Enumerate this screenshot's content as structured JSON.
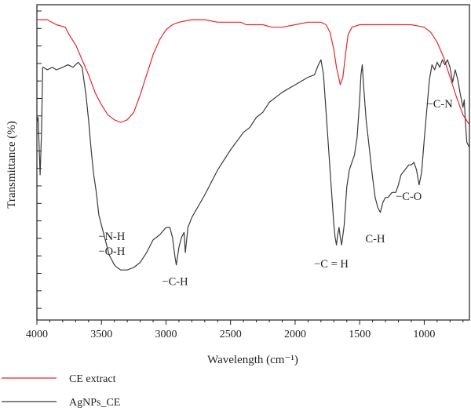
{
  "chart_data": {
    "type": "line",
    "title": "",
    "xlabel": "Wavelength (cm⁻¹)",
    "ylabel": "Transmittance (%)",
    "xlim": [
      4000,
      650
    ],
    "x_reversed": true,
    "x_ticks": [
      4000,
      3500,
      3000,
      2500,
      2000,
      1500,
      1000
    ],
    "y_tick_labels_shown": false,
    "grid": false,
    "legend_position": "bottom",
    "series": [
      {
        "name": "CE extract",
        "color": "#e8262d",
        "points": [
          [
            4000,
            1.02
          ],
          [
            3920,
            1.02
          ],
          [
            3850,
            1.0
          ],
          [
            3780,
            0.99
          ],
          [
            3750,
            0.96
          ],
          [
            3700,
            0.92
          ],
          [
            3650,
            0.86
          ],
          [
            3600,
            0.8
          ],
          [
            3550,
            0.73
          ],
          [
            3500,
            0.68
          ],
          [
            3450,
            0.64
          ],
          [
            3400,
            0.62
          ],
          [
            3350,
            0.61
          ],
          [
            3300,
            0.62
          ],
          [
            3250,
            0.65
          ],
          [
            3200,
            0.72
          ],
          [
            3150,
            0.8
          ],
          [
            3100,
            0.88
          ],
          [
            3050,
            0.94
          ],
          [
            3000,
            0.98
          ],
          [
            2950,
            1.0
          ],
          [
            2900,
            1.01
          ],
          [
            2800,
            1.02
          ],
          [
            2700,
            1.02
          ],
          [
            2600,
            1.01
          ],
          [
            2500,
            1.01
          ],
          [
            2420,
            1.01
          ],
          [
            2380,
            1.0
          ],
          [
            2330,
            1.0
          ],
          [
            2250,
            1.0
          ],
          [
            2180,
            0.99
          ],
          [
            2140,
            0.99
          ],
          [
            2100,
            0.99
          ],
          [
            2000,
            1.0
          ],
          [
            1900,
            1.01
          ],
          [
            1800,
            1.01
          ],
          [
            1760,
            1.0
          ],
          [
            1730,
            0.97
          ],
          [
            1700,
            0.9
          ],
          [
            1680,
            0.83
          ],
          [
            1650,
            0.76
          ],
          [
            1630,
            0.79
          ],
          [
            1610,
            0.88
          ],
          [
            1590,
            0.96
          ],
          [
            1560,
            0.99
          ],
          [
            1500,
            1.0
          ],
          [
            1400,
            1.0
          ],
          [
            1300,
            1.0
          ],
          [
            1200,
            1.0
          ],
          [
            1100,
            1.0
          ],
          [
            1000,
            0.99
          ],
          [
            950,
            0.97
          ],
          [
            900,
            0.93
          ],
          [
            850,
            0.87
          ],
          [
            800,
            0.79
          ],
          [
            750,
            0.71
          ],
          [
            700,
            0.64
          ],
          [
            650,
            0.6
          ]
        ]
      },
      {
        "name": "AgNPs_CE",
        "color": "#3a3a3a",
        "points": [
          [
            4000,
            0.61
          ],
          [
            3990,
            0.63
          ],
          [
            3975,
            0.4
          ],
          [
            3965,
            0.56
          ],
          [
            3955,
            0.83
          ],
          [
            3950,
            0.83
          ],
          [
            3920,
            0.82
          ],
          [
            3880,
            0.83
          ],
          [
            3850,
            0.82
          ],
          [
            3800,
            0.83
          ],
          [
            3760,
            0.84
          ],
          [
            3720,
            0.83
          ],
          [
            3700,
            0.84
          ],
          [
            3680,
            0.85
          ],
          [
            3650,
            0.83
          ],
          [
            3620,
            0.72
          ],
          [
            3600,
            0.62
          ],
          [
            3580,
            0.5
          ],
          [
            3560,
            0.4
          ],
          [
            3540,
            0.33
          ],
          [
            3520,
            0.24
          ],
          [
            3500,
            0.2
          ],
          [
            3480,
            0.16
          ],
          [
            3460,
            0.12
          ],
          [
            3440,
            0.08
          ],
          [
            3420,
            0.06
          ],
          [
            3400,
            0.04
          ],
          [
            3380,
            0.03
          ],
          [
            3350,
            0.02
          ],
          [
            3300,
            0.02
          ],
          [
            3250,
            0.03
          ],
          [
            3200,
            0.05
          ],
          [
            3150,
            0.09
          ],
          [
            3100,
            0.14
          ],
          [
            3050,
            0.16
          ],
          [
            3000,
            0.19
          ],
          [
            2970,
            0.19
          ],
          [
            2950,
            0.15
          ],
          [
            2930,
            0.07
          ],
          [
            2920,
            0.04
          ],
          [
            2900,
            0.11
          ],
          [
            2880,
            0.15
          ],
          [
            2860,
            0.17
          ],
          [
            2850,
            0.09
          ],
          [
            2830,
            0.19
          ],
          [
            2800,
            0.23
          ],
          [
            2700,
            0.32
          ],
          [
            2600,
            0.42
          ],
          [
            2500,
            0.5
          ],
          [
            2400,
            0.57
          ],
          [
            2350,
            0.59
          ],
          [
            2300,
            0.63
          ],
          [
            2250,
            0.65
          ],
          [
            2200,
            0.69
          ],
          [
            2100,
            0.73
          ],
          [
            2000,
            0.76
          ],
          [
            1900,
            0.79
          ],
          [
            1850,
            0.8
          ],
          [
            1820,
            0.84
          ],
          [
            1800,
            0.86
          ],
          [
            1780,
            0.8
          ],
          [
            1760,
            0.65
          ],
          [
            1740,
            0.5
          ],
          [
            1720,
            0.35
          ],
          [
            1700,
            0.2
          ],
          [
            1690,
            0.15
          ],
          [
            1680,
            0.12
          ],
          [
            1670,
            0.16
          ],
          [
            1660,
            0.19
          ],
          [
            1650,
            0.15
          ],
          [
            1640,
            0.12
          ],
          [
            1620,
            0.2
          ],
          [
            1600,
            0.35
          ],
          [
            1580,
            0.42
          ],
          [
            1560,
            0.45
          ],
          [
            1540,
            0.48
          ],
          [
            1520,
            0.55
          ],
          [
            1500,
            0.7
          ],
          [
            1490,
            0.8
          ],
          [
            1480,
            0.84
          ],
          [
            1470,
            0.76
          ],
          [
            1450,
            0.62
          ],
          [
            1420,
            0.48
          ],
          [
            1400,
            0.39
          ],
          [
            1380,
            0.31
          ],
          [
            1360,
            0.27
          ],
          [
            1340,
            0.25
          ],
          [
            1320,
            0.29
          ],
          [
            1300,
            0.31
          ],
          [
            1280,
            0.31
          ],
          [
            1250,
            0.33
          ],
          [
            1220,
            0.33
          ],
          [
            1200,
            0.36
          ],
          [
            1180,
            0.4
          ],
          [
            1150,
            0.42
          ],
          [
            1120,
            0.44
          ],
          [
            1100,
            0.44
          ],
          [
            1080,
            0.45
          ],
          [
            1060,
            0.42
          ],
          [
            1040,
            0.36
          ],
          [
            1020,
            0.41
          ],
          [
            1000,
            0.54
          ],
          [
            980,
            0.66
          ],
          [
            960,
            0.78
          ],
          [
            940,
            0.84
          ],
          [
            920,
            0.82
          ],
          [
            900,
            0.85
          ],
          [
            880,
            0.83
          ],
          [
            860,
            0.86
          ],
          [
            840,
            0.84
          ],
          [
            820,
            0.86
          ],
          [
            800,
            0.83
          ],
          [
            780,
            0.77
          ],
          [
            760,
            0.82
          ],
          [
            740,
            0.78
          ],
          [
            720,
            0.72
          ],
          [
            700,
            0.67
          ],
          [
            690,
            0.7
          ],
          [
            680,
            0.6
          ],
          [
            670,
            0.53
          ],
          [
            650,
            0.51
          ]
        ]
      }
    ],
    "annotations": [
      {
        "text": "−N-H",
        "x": 3420,
        "y": 0.14
      },
      {
        "text": "−O-H",
        "x": 3420,
        "y": 0.08
      },
      {
        "text": "−C-H",
        "x": 2930,
        "y": -0.04
      },
      {
        "text": "−C = H",
        "x": 1720,
        "y": 0.03
      },
      {
        "text": "C-H",
        "x": 1380,
        "y": 0.13
      },
      {
        "text": "−C-O",
        "x": 1120,
        "y": 0.3
      },
      {
        "text": "−C-N",
        "x": 880,
        "y": 0.67
      }
    ]
  }
}
